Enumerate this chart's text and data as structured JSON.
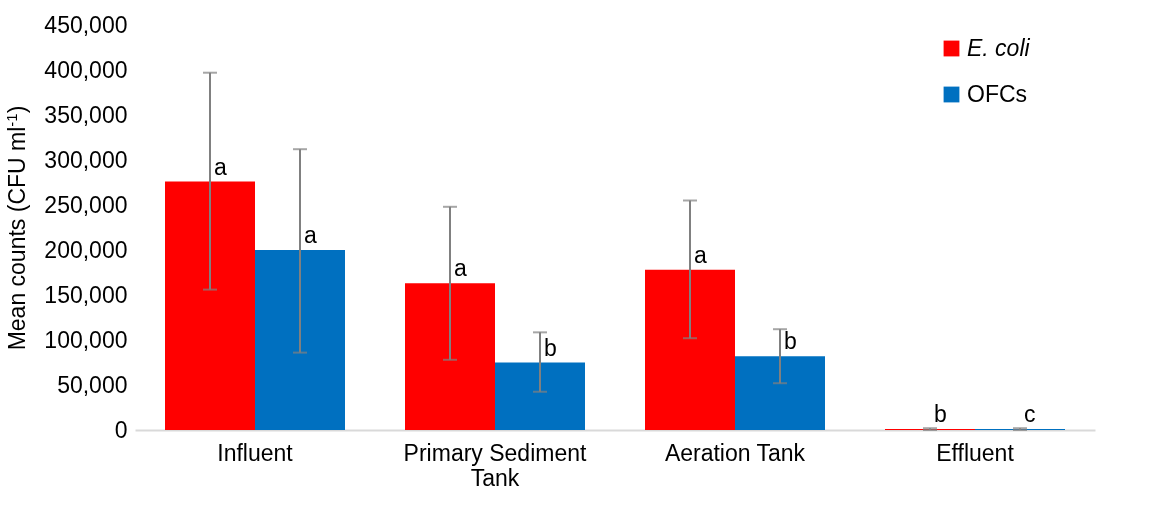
{
  "chart_data": {
    "type": "bar",
    "ylabel": "Mean counts (CFU ml$^{-1}$)",
    "categories": [
      "Influent",
      "Primary Sediment Tank",
      "Aeration Tank",
      "Effluent"
    ],
    "series": [
      {
        "name": "E. coli",
        "color": "#ff0000",
        "values": [
          276000,
          163000,
          178000,
          1000
        ],
        "errors": [
          [
            156000,
            397000
          ],
          [
            78000,
            248000
          ],
          [
            102000,
            255000
          ],
          1000
        ]
      },
      {
        "name": "OFCs",
        "color": "#0070c0",
        "values": [
          200000,
          75000,
          82000,
          1000
        ],
        "errors": [
          [
            86000,
            312000
          ],
          [
            42500,
            108500
          ],
          [
            52000,
            112000
          ],
          1000
        ]
      }
    ],
    "ylim": [
      0,
      450000
    ],
    "yticks": [
      0,
      {
        "value": 50000,
        "label": "50,000"
      },
      {
        "value": 100000,
        "label": "100,000"
      },
      {
        "value": 150000,
        "label": "150,000"
      },
      {
        "value": 200000,
        "label": "200,000"
      },
      {
        "value": 250000,
        "label": "250,000"
      },
      {
        "value": 300000,
        "label": "300,000"
      },
      {
        "value": 350000,
        "label": "350,000"
      },
      {
        "value": 400000,
        "label": "400,000"
      },
      {
        "value": 450000,
        "label": "450,000"
      }
    ],
    "grid": false,
    "legend": "top right",
    "annotations": [
      {
        "text": "a",
        "x": "Influent",
        "y": 276000
      },
      {
        "text": "a",
        "x": "Influent",
        "y": 200000
      },
      {
        "text": "a",
        "x": "Primary Sediment Tank",
        "y": 163000
      },
      {
        "text": "b",
        "x": "Primary Sediment Tank",
        "y": 75000
      },
      {
        "text": "a",
        "x": "Aeration Tank",
        "y": 178000
      },
      {
        "text": "b",
        "x": "Aeration Tank",
        "y": 82000
      },
      {
        "text": "b",
        "x": "Effluent",
        "y": 1000
      },
      {
        "text": "c",
        "x": "Effluent",
        "y": 1000
      }
    ]
  }
}
